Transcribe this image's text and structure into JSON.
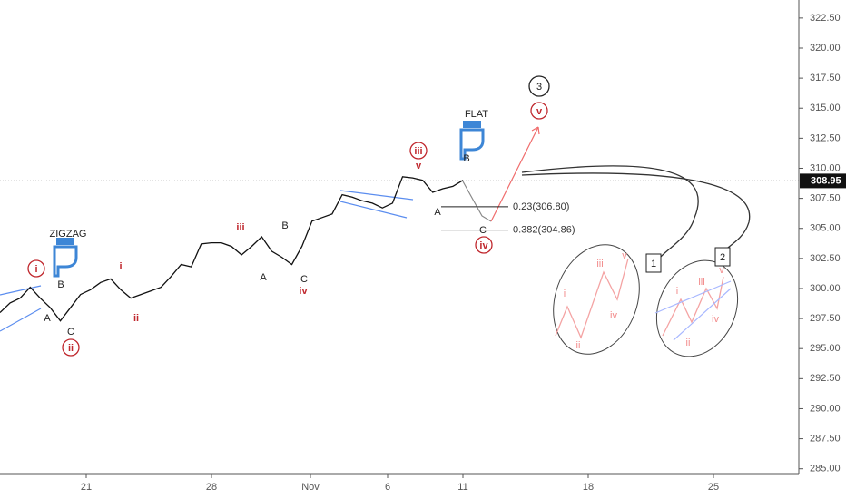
{
  "chart_data": {
    "type": "line",
    "color": "#111111",
    "values": [
      298.0,
      298.8,
      299.2,
      300.1,
      299.2,
      298.4,
      297.3,
      298.4,
      299.5,
      299.9,
      300.5,
      300.8,
      299.9,
      299.2,
      299.5,
      299.8,
      300.1,
      301.0,
      302.0,
      301.8,
      303.7,
      303.8,
      303.8,
      303.5,
      302.8,
      303.5,
      304.3,
      303.1,
      302.6,
      302.0,
      303.5,
      305.6,
      305.9,
      306.2,
      307.8,
      307.6,
      307.3,
      307.1,
      306.7,
      307.1,
      309.3,
      309.2,
      309.0,
      308.0,
      308.3,
      308.5,
      309.0
    ],
    "ylim": [
      284.6,
      324.0
    ],
    "yticks": [
      {
        "value": 285,
        "label": "285.00"
      },
      {
        "value": 287.5,
        "label": "287.50"
      },
      {
        "value": 290,
        "label": "290.00"
      },
      {
        "value": 292.5,
        "label": "292.50"
      },
      {
        "value": 295,
        "label": "295.00"
      },
      {
        "value": 297.5,
        "label": "297.50"
      },
      {
        "value": 300,
        "label": "300.00"
      },
      {
        "value": 302.5,
        "label": "302.50"
      },
      {
        "value": 305,
        "label": "305.00"
      },
      {
        "value": 307.5,
        "label": "307.50"
      },
      {
        "value": 310,
        "label": "310.00"
      },
      {
        "value": 312.5,
        "label": "312.50"
      },
      {
        "value": 315,
        "label": "315.00"
      },
      {
        "value": 317.5,
        "label": "317.50"
      },
      {
        "value": 320,
        "label": "320.00"
      },
      {
        "value": 322.5,
        "label": "322.50"
      }
    ],
    "x_labels": [
      "21",
      "28",
      "Nov",
      "6",
      "11",
      "18",
      "25"
    ],
    "last_price": 308.95,
    "fib_levels": [
      {
        "value": 306.8,
        "label": "0.23(306.80)"
      },
      {
        "value": 304.86,
        "label": "0.382(304.86)"
      }
    ],
    "annotations": [
      "ZIGZAG",
      "FLAT",
      "3",
      "v",
      "iii",
      "v",
      "i",
      "ii",
      "iv",
      "B",
      "A",
      "C",
      "i",
      "ii",
      "iii",
      "iv",
      "A",
      "B",
      "C",
      "B",
      "A",
      "C",
      "1",
      "2",
      "i",
      "ii",
      "iii",
      "iv",
      "v",
      "i",
      "ii",
      "iii",
      "iv",
      "v"
    ]
  }
}
